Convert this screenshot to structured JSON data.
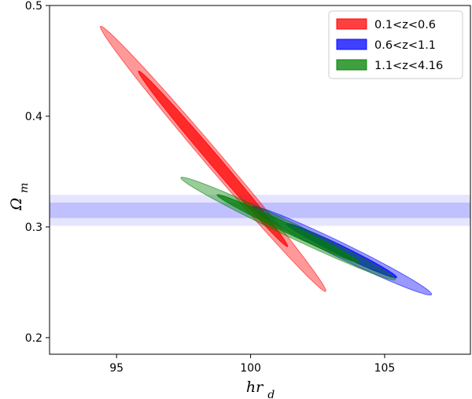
{
  "chart_data": {
    "type": "contour",
    "xlabel": "hr_d",
    "ylabel": "Ωm",
    "xlim": [
      92.5,
      108.2
    ],
    "ylim": [
      0.185,
      0.5
    ],
    "xticks": [
      95,
      100,
      105
    ],
    "yticks": [
      0.2,
      0.3,
      0.4,
      0.5
    ],
    "xtick_labels": [
      "95",
      "100",
      "105"
    ],
    "ytick_labels": [
      "0.2",
      "0.3",
      "0.4",
      "0.5"
    ],
    "legend_position": "top-right",
    "band": {
      "color": "#0000ff",
      "outer": [
        0.301,
        0.329
      ],
      "inner": [
        0.308,
        0.322
      ]
    },
    "series": [
      {
        "name": "0.1<z<0.6",
        "color": "#ff0000",
        "outer": {
          "center": [
            98.6,
            0.3615
          ],
          "semi_major": 4.2,
          "semi_minor": 0.0115,
          "slope": -0.0285
        },
        "inner": {
          "center": [
            98.6,
            0.3615
          ],
          "semi_major": 2.78,
          "semi_minor": 0.0075,
          "slope": -0.0285
        }
      },
      {
        "name": "0.6<z<1.1",
        "color": "#0000ff",
        "outer": {
          "center": [
            103.4,
            0.2785
          ],
          "semi_major": 3.35,
          "semi_minor": 0.0075,
          "slope": -0.0118
        },
        "inner": {
          "center": [
            103.4,
            0.2785
          ],
          "semi_major": 2.05,
          "semi_minor": 0.0046,
          "slope": -0.0118
        }
      },
      {
        "name": "1.1<z<4.16",
        "color": "#008000",
        "outer": {
          "center": [
            101.4,
            0.2985
          ],
          "semi_major": 4.0,
          "semi_minor": 0.0072,
          "slope": -0.0115
        },
        "inner": {
          "center": [
            101.4,
            0.2985
          ],
          "semi_major": 2.65,
          "semi_minor": 0.0045,
          "slope": -0.0115
        }
      }
    ]
  }
}
